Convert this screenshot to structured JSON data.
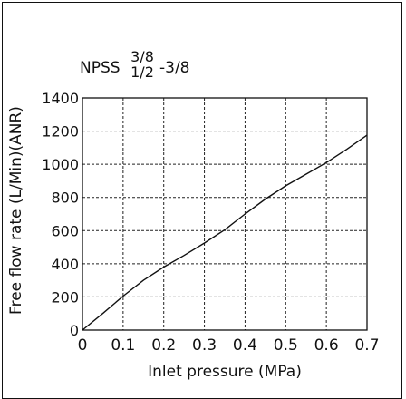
{
  "chart_data": {
    "type": "line",
    "title_parts": {
      "prefix": "NPSS",
      "fraction_top": "3/8",
      "fraction_bottom": "1/2",
      "suffix": "-3/8"
    },
    "xlabel": "Inlet pressure (MPa)",
    "ylabel": "Free flow rate  (L/Min)(ANR)",
    "xlim": [
      0,
      0.7
    ],
    "ylim": [
      0,
      1400
    ],
    "x_ticks": [
      0,
      0.1,
      0.2,
      0.3,
      0.4,
      0.5,
      0.6,
      0.7
    ],
    "x_tick_labels": [
      "0",
      "0.1",
      "0.2",
      "0.3",
      "0.4",
      "0.5",
      "0.6",
      "0.7"
    ],
    "y_ticks": [
      0,
      200,
      400,
      600,
      800,
      1000,
      1200,
      1400
    ],
    "y_tick_labels": [
      "0",
      "200",
      "400",
      "600",
      "800",
      "1000",
      "1200",
      "1400"
    ],
    "grid": true,
    "series": [
      {
        "x": [
          0,
          0.05,
          0.1,
          0.15,
          0.2,
          0.25,
          0.3,
          0.35,
          0.4,
          0.45,
          0.5,
          0.55,
          0.6,
          0.65,
          0.7
        ],
        "y": [
          0,
          100,
          205,
          300,
          380,
          450,
          525,
          605,
          700,
          790,
          870,
          940,
          1010,
          1090,
          1175
        ]
      }
    ],
    "line_color": "#111111",
    "grid_color": "#222222"
  }
}
